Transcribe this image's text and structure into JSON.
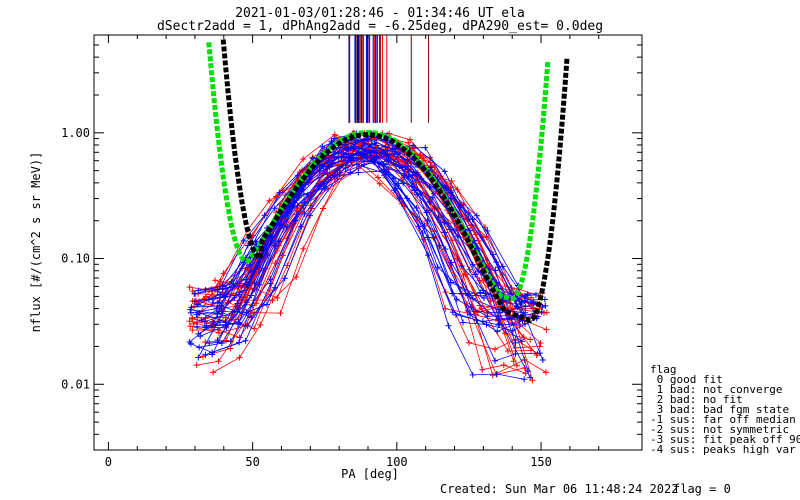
{
  "chart_data": {
    "type": "line",
    "title_line1": "2021-01-03/01:28:46 - 01:34:46 UT ela",
    "title_line2": "dSectr2add = 1, dPhAng2add = -6.25deg, dPA290_est=    0.0deg",
    "xlabel": "PA [deg]",
    "ylabel": "nflux [#/(cm^2 s sr MeV)]",
    "xlim": [
      -5,
      185
    ],
    "ylim": [
      0.003,
      6.0
    ],
    "yscale": "log",
    "xticks": [
      0,
      50,
      100,
      150
    ],
    "xticklabels": [
      "0",
      "50",
      "100",
      "150"
    ],
    "yticks": [
      0.01,
      0.1,
      1.0
    ],
    "yticklabels": [
      "0.01",
      "0.10",
      "1.00"
    ],
    "fit_curves": [
      {
        "color": "#00e000",
        "min_x": 48,
        "min_y": 0.095,
        "peak_x": 90,
        "peak_y": 0.97,
        "min2_x": 140,
        "min2_y": 0.048
      },
      {
        "color": "#000000",
        "min_x": 53,
        "min_y": 0.1,
        "peak_x": 90,
        "peak_y": 0.93,
        "min2_x": 146,
        "min2_y": 0.032
      }
    ],
    "series_colors": {
      "red": "#ff0000",
      "blue": "#0000ff",
      "green": "#00e000",
      "black": "#000000"
    },
    "flag_legend": {
      "title": "flag",
      "entries": [
        " 0 good fit",
        " 1 bad: not converge",
        " 2 bad: no fit",
        " 3 bad: bad fgm state",
        "-1 sus: far off median",
        "-2 sus: not symmetric",
        "-3 sus: fit peak off 90",
        "-4 sus: peaks high var"
      ]
    },
    "footer": {
      "created": "Created: Sun Mar 06 11:48:24 2022",
      "flag": "flag = 0"
    }
  }
}
